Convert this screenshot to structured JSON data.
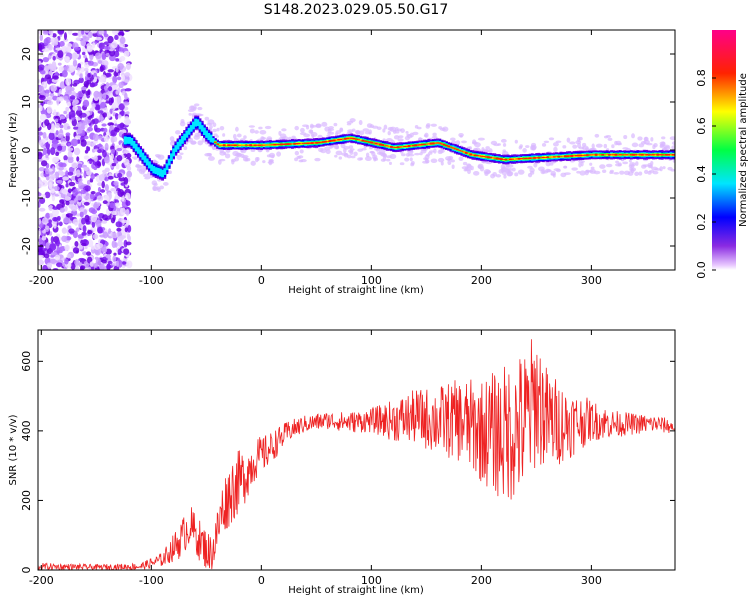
{
  "chart_data": [
    {
      "type": "heatmap",
      "title": "S148.2023.029.05.50.G17",
      "xlabel": "Height of straight line (km)",
      "ylabel": "Frequency (Hz)",
      "xlim": [
        -203,
        376
      ],
      "ylim": [
        -25,
        25
      ],
      "xticks": [
        -200,
        -100,
        0,
        100,
        200,
        300
      ],
      "yticks": [
        -20,
        -10,
        0,
        10,
        20
      ],
      "colorbar": {
        "label": "Normalized spectral amplitude",
        "range": [
          0,
          1
        ],
        "ticks": [
          "0.0",
          "0.2",
          "0.4",
          "0.6",
          "0.8"
        ],
        "colors": [
          "#ffffff",
          "#8a2be2",
          "#0000ff",
          "#00ffff",
          "#00ff00",
          "#ffff00",
          "#ff0000",
          "#ff00aa"
        ]
      },
      "ridge_frequency": [
        {
          "x": -120,
          "y": 2
        },
        {
          "x": -110,
          "y": -1
        },
        {
          "x": -100,
          "y": -4
        },
        {
          "x": -90,
          "y": -5
        },
        {
          "x": -80,
          "y": 0
        },
        {
          "x": -70,
          "y": 3
        },
        {
          "x": -60,
          "y": 6
        },
        {
          "x": -50,
          "y": 3
        },
        {
          "x": -40,
          "y": 1
        },
        {
          "x": 0,
          "y": 1
        },
        {
          "x": 50,
          "y": 1.5
        },
        {
          "x": 80,
          "y": 2.5
        },
        {
          "x": 120,
          "y": 0.5
        },
        {
          "x": 160,
          "y": 1.5
        },
        {
          "x": 190,
          "y": -1
        },
        {
          "x": 220,
          "y": -2
        },
        {
          "x": 260,
          "y": -1.5
        },
        {
          "x": 300,
          "y": -1
        },
        {
          "x": 376,
          "y": -1
        }
      ]
    },
    {
      "type": "line",
      "xlabel": "Height of straight line (km)",
      "ylabel": "SNR (10 * v/v)",
      "xlim": [
        -203,
        376
      ],
      "ylim": [
        0,
        690
      ],
      "xticks": [
        -200,
        -100,
        0,
        100,
        200,
        300
      ],
      "yticks": [
        0,
        200,
        400,
        600
      ],
      "color": "#ee2222",
      "series": [
        {
          "x": [
            -200,
            -150,
            -110,
            -90,
            -75,
            -65,
            -55,
            -45,
            -35,
            -25,
            -15,
            -5,
            5,
            15,
            25,
            40,
            60,
            80,
            100,
            120,
            140,
            160,
            180,
            200,
            220,
            240,
            250,
            260,
            280,
            300,
            320,
            340,
            360,
            376
          ],
          "y": [
            10,
            8,
            10,
            30,
            80,
            130,
            80,
            40,
            180,
            240,
            270,
            320,
            340,
            370,
            400,
            420,
            430,
            425,
            430,
            430,
            440,
            430,
            430,
            400,
            390,
            420,
            500,
            430,
            420,
            430,
            420,
            420,
            420,
            410
          ],
          "spread": [
            10,
            8,
            10,
            20,
            50,
            60,
            60,
            60,
            80,
            100,
            80,
            60,
            50,
            40,
            30,
            25,
            25,
            30,
            35,
            60,
            80,
            100,
            120,
            150,
            200,
            220,
            200,
            150,
            100,
            60,
            40,
            30,
            25,
            20
          ]
        }
      ]
    }
  ]
}
